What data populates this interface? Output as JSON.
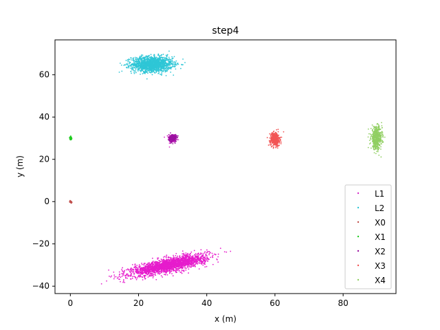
{
  "chart_data": {
    "type": "scatter",
    "title": "step4",
    "xlabel": "x (m)",
    "ylabel": "y (m)",
    "xlim": [
      -4.5,
      95.5
    ],
    "ylim": [
      -43.5,
      76.5
    ],
    "xticks": [
      0,
      20,
      40,
      60,
      80
    ],
    "yticks": [
      -40,
      -20,
      0,
      20,
      40,
      60
    ],
    "grid": false,
    "legend_position": "lower-right",
    "series": [
      {
        "name": "L1",
        "color": "#d62fc8",
        "cluster": {
          "cx": 30.0,
          "cy": 30.0,
          "sx": 0.6,
          "sy": 1.0,
          "n": 220
        }
      },
      {
        "name": "L2",
        "color": "#2ec6d6",
        "cluster": {
          "cx": 24.0,
          "cy": 65.0,
          "sx": 3.0,
          "sy": 1.8,
          "n": 1500
        }
      },
      {
        "name": "X0",
        "color": "#c0504d",
        "cluster": {
          "cx": 0.1,
          "cy": -0.1,
          "sx": 0.15,
          "sy": 0.25,
          "n": 40
        }
      },
      {
        "name": "X1",
        "color": "#22cc22",
        "cluster": {
          "cx": 0.1,
          "cy": 30.0,
          "sx": 0.15,
          "sy": 0.35,
          "n": 60
        }
      },
      {
        "name": "X2",
        "color": "#9b10a0",
        "cluster": {
          "cx": 30.0,
          "cy": 30.0,
          "sx": 0.55,
          "sy": 0.9,
          "n": 220
        }
      },
      {
        "name": "X3",
        "color": "#f25555",
        "cluster": {
          "cx": 60.0,
          "cy": 29.5,
          "sx": 0.7,
          "sy": 1.6,
          "n": 420
        }
      },
      {
        "name": "X4",
        "color": "#91cf62",
        "cluster": {
          "cx": 89.8,
          "cy": 30.0,
          "sx": 0.8,
          "sy": 2.6,
          "n": 520
        }
      },
      {
        "name": "",
        "color": "#e61ccc",
        "cluster": {
          "cx": 29.0,
          "cy": -30.0,
          "sx": 5.5,
          "sy": 1.6,
          "rho": 0.75,
          "slope": 0.33,
          "n": 2200
        }
      }
    ]
  }
}
